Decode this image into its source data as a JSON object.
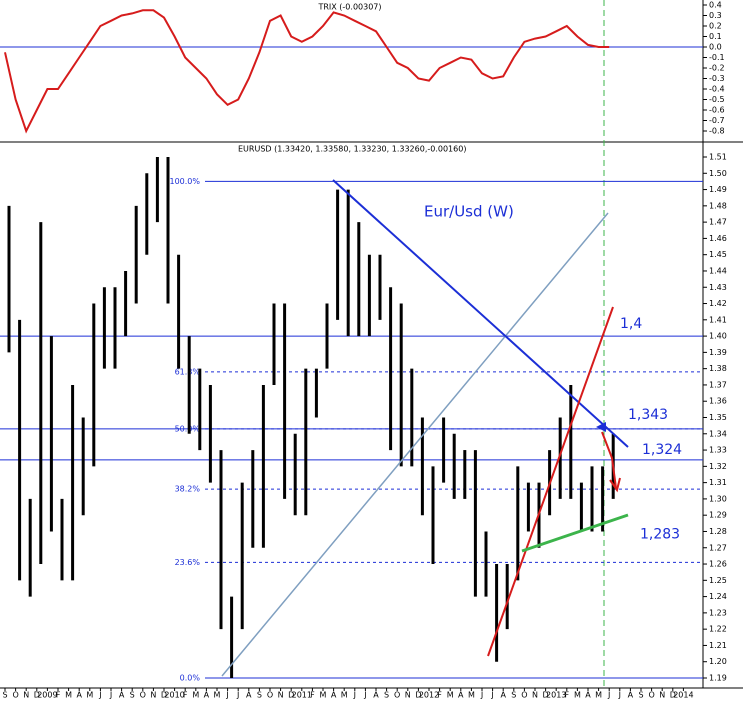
{
  "chart_data": {
    "type": "hilo",
    "title": "EURUSD (1.33420, 1.33580, 1.33230, 1.33260,-0.00160)",
    "annotation": "Eur/Usd (W)",
    "categories": [
      "S",
      "O",
      "N",
      "D",
      "2009",
      "F",
      "M",
      "A",
      "M",
      "J",
      "J",
      "A",
      "S",
      "O",
      "N",
      "D",
      "2010",
      "F",
      "M",
      "A",
      "M",
      "J",
      "J",
      "A",
      "S",
      "O",
      "N",
      "D",
      "2011",
      "F",
      "M",
      "A",
      "M",
      "J",
      "J",
      "A",
      "S",
      "O",
      "N",
      "D",
      "2012",
      "F",
      "M",
      "A",
      "M",
      "J",
      "J",
      "A",
      "S",
      "O",
      "N",
      "D",
      "2013",
      "F",
      "M",
      "A",
      "M",
      "J",
      "J",
      "A",
      "S",
      "O",
      "N",
      "D",
      "2014"
    ],
    "high": [
      1.48,
      1.41,
      1.3,
      1.47,
      1.4,
      1.3,
      1.37,
      1.35,
      1.42,
      1.43,
      1.43,
      1.44,
      1.48,
      1.5,
      1.51,
      1.51,
      1.45,
      1.4,
      1.38,
      1.37,
      1.33,
      1.24,
      1.31,
      1.33,
      1.37,
      1.42,
      1.42,
      1.34,
      1.38,
      1.38,
      1.42,
      1.49,
      1.49,
      1.47,
      1.45,
      1.45,
      1.43,
      1.42,
      1.38,
      1.35,
      1.32,
      1.35,
      1.34,
      1.33,
      1.33,
      1.28,
      1.26,
      1.26,
      1.32,
      1.31,
      1.31,
      1.33,
      1.35,
      1.37,
      1.31,
      1.32,
      1.32,
      1.34,
      null,
      null,
      null,
      null,
      null,
      null,
      null
    ],
    "low": [
      1.39,
      1.25,
      1.24,
      1.26,
      1.28,
      1.25,
      1.25,
      1.29,
      1.32,
      1.38,
      1.38,
      1.4,
      1.42,
      1.45,
      1.47,
      1.42,
      1.38,
      1.34,
      1.33,
      1.31,
      1.22,
      1.19,
      1.22,
      1.27,
      1.27,
      1.37,
      1.3,
      1.29,
      1.29,
      1.35,
      1.38,
      1.41,
      1.4,
      1.4,
      1.4,
      1.41,
      1.33,
      1.32,
      1.32,
      1.29,
      1.26,
      1.31,
      1.3,
      1.3,
      1.24,
      1.24,
      1.2,
      1.22,
      1.25,
      1.28,
      1.27,
      1.29,
      1.3,
      1.3,
      1.28,
      1.28,
      1.28,
      1.3,
      null,
      null,
      null,
      null,
      null,
      null,
      null
    ],
    "color": "#000000",
    "ylim": [
      1.19,
      1.51
    ],
    "yticks": [
      {
        "value": 1.51,
        "label": "1.51"
      },
      {
        "value": 1.5,
        "label": "1.50"
      },
      1.49,
      1.48,
      1.47,
      1.46,
      1.45,
      1.44,
      1.43,
      1.42,
      1.41,
      {
        "value": 1.4,
        "label": "1.40"
      },
      1.39,
      1.38,
      1.37,
      1.36,
      1.35,
      1.34,
      1.33,
      1.32,
      1.31,
      {
        "value": 1.3,
        "label": "1.30"
      },
      1.29,
      1.28,
      1.27,
      1.26,
      1.25,
      1.24,
      1.23,
      1.22,
      1.21,
      {
        "value": 1.2,
        "label": "1.20"
      },
      1.19
    ],
    "levels": [
      {
        "value": 1.4,
        "label": "1,4"
      },
      {
        "value": 1.343,
        "label": "1,343"
      },
      {
        "value": 1.324,
        "label": "1,324"
      },
      {
        "value": 1.283,
        "label": "1,283"
      }
    ],
    "fib_levels": [
      {
        "name": "100.0%",
        "value": 1.495
      },
      {
        "name": "61.8%",
        "value": 1.378
      },
      {
        "name": "50.0%",
        "value": 1.343
      },
      {
        "name": "38.2%",
        "value": 1.306
      },
      {
        "name": "23.6%",
        "value": 1.261
      },
      {
        "name": "0.0%",
        "value": 1.19
      }
    ],
    "indicator": {
      "title": "TRIX (-0.00307)",
      "color": "#d61c1c",
      "values": [
        -0.05,
        -0.5,
        -0.8,
        -0.6,
        -0.4,
        -0.4,
        -0.25,
        -0.1,
        0.05,
        0.2,
        0.25,
        0.3,
        0.32,
        0.35,
        0.35,
        0.28,
        0.1,
        -0.1,
        -0.2,
        -0.3,
        -0.45,
        -0.55,
        -0.5,
        -0.3,
        -0.05,
        0.25,
        0.3,
        0.1,
        0.05,
        0.1,
        0.2,
        0.33,
        0.3,
        0.25,
        0.2,
        0.15,
        0.0,
        -0.15,
        -0.2,
        -0.3,
        -0.32,
        -0.2,
        -0.15,
        -0.1,
        -0.12,
        -0.25,
        -0.3,
        -0.28,
        -0.1,
        0.05,
        0.08,
        0.1,
        0.15,
        0.2,
        0.1,
        0.02,
        0.0,
        0.0,
        null,
        null,
        null,
        null,
        null,
        null,
        null
      ],
      "ylim": [
        -0.8,
        0.4
      ],
      "yticks": [
        0.4,
        0.3,
        0.2,
        0.1,
        {
          "value": 0,
          "label": "0.0"
        },
        -0.1,
        -0.2,
        -0.3,
        -0.4,
        -0.5,
        -0.6,
        -0.7,
        -0.8
      ]
    }
  }
}
